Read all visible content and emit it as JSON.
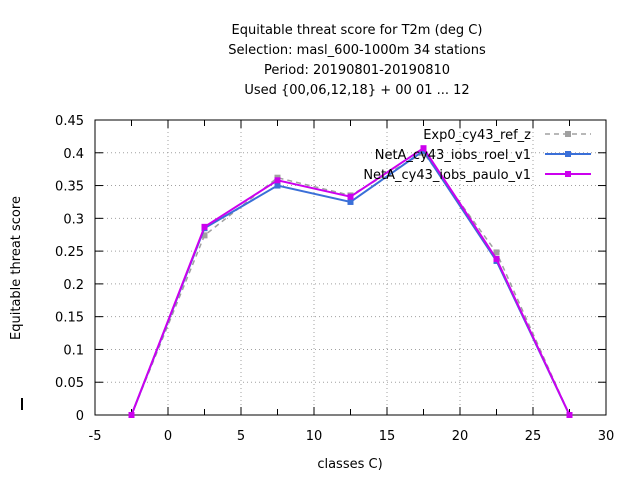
{
  "chart_data": {
    "type": "line",
    "title": [
      "Equitable threat score  for T2m (deg C)",
      "Selection: masl_600-1000m     34 stations",
      "Period: 20190801-20190810",
      "Used {00,06,12,18} + 00 01 ... 12"
    ],
    "xlabel": "classes C)",
    "ylabel": "Equitable threat score",
    "xlim": [
      -5,
      30
    ],
    "ylim": [
      0,
      0.45
    ],
    "xticks": [
      -5,
      0,
      5,
      10,
      15,
      20,
      25,
      30
    ],
    "yticks": [
      0,
      0.05,
      0.1,
      0.15,
      0.2,
      0.25,
      0.3,
      0.35,
      0.4,
      0.45
    ],
    "xtick_labels": [
      "-5",
      "0",
      "5",
      "10",
      "15",
      "20",
      "25",
      "30"
    ],
    "ytick_labels": [
      "0",
      "0.05",
      "0.1",
      "0.15",
      "0.2",
      "0.25",
      "0.3",
      "0.35",
      "0.4",
      "0.45"
    ],
    "grid": true,
    "legend_position": "top-right",
    "x": [
      -2.5,
      2.5,
      7.5,
      12.5,
      17.5,
      22.5,
      27.5
    ],
    "series": [
      {
        "name": "Exp0_cy43_ref_z",
        "color": "#a0a0a0",
        "dashed": true,
        "values": [
          0,
          0.274,
          0.362,
          0.335,
          0.4,
          0.248,
          0
        ]
      },
      {
        "name": "NetA_cy43_iobs_roel_v1",
        "color": "#3a6fd8",
        "dashed": false,
        "values": [
          0,
          0.285,
          0.35,
          0.325,
          0.403,
          0.235,
          0
        ]
      },
      {
        "name": "NetA_cy43_iobs_paulo_v1",
        "color": "#cc00ee",
        "dashed": false,
        "values": [
          0,
          0.287,
          0.358,
          0.333,
          0.407,
          0.238,
          0
        ]
      }
    ]
  }
}
